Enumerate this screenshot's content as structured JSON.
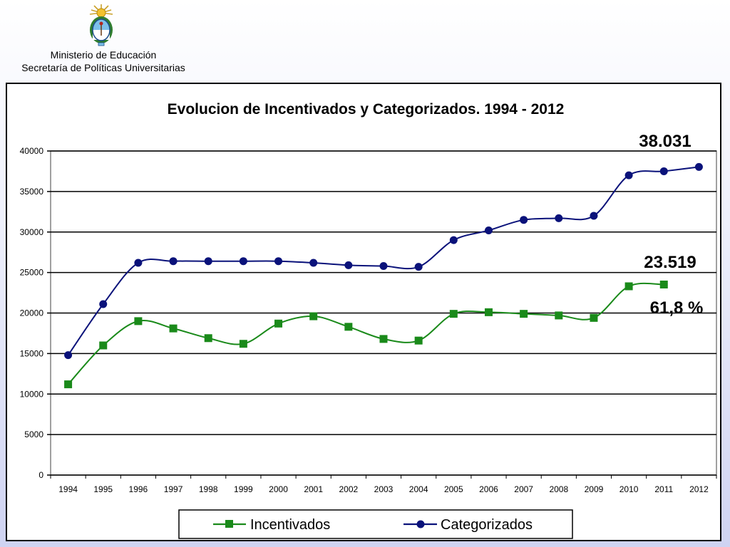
{
  "header": {
    "org_line1": "Ministerio de Educación",
    "org_line2": "Secretaría de Políticas Universitarias"
  },
  "colors": {
    "incentivados": "#1a8a1a",
    "categorizados": "#0a127a",
    "plot_bg": "#ffffff",
    "grid": "#000000"
  },
  "chart_data": {
    "type": "line",
    "title": "Evolucion de Incentivados y Categorizados. 1994 - 2012",
    "categories": [
      "1994",
      "1995",
      "1996",
      "1997",
      "1998",
      "1999",
      "2000",
      "2001",
      "2002",
      "2003",
      "2004",
      "2005",
      "2006",
      "2007",
      "2008",
      "2009",
      "2010",
      "2011",
      "2012"
    ],
    "ylim": [
      0,
      40000
    ],
    "yticks": [
      "0",
      "5000",
      "10000",
      "15000",
      "20000",
      "25000",
      "30000",
      "35000",
      "40000"
    ],
    "grid": true,
    "legend_position": "bottom",
    "series": [
      {
        "name": "Incentivados",
        "marker": "square",
        "values": [
          11200,
          16000,
          19000,
          18100,
          16900,
          16200,
          18700,
          19600,
          18300,
          16800,
          16600,
          19900,
          20100,
          19900,
          19700,
          19400,
          23300,
          23519,
          null
        ]
      },
      {
        "name": "Categorizados",
        "marker": "circle",
        "values": [
          14800,
          21100,
          26200,
          26400,
          26400,
          26400,
          26400,
          26200,
          25900,
          25800,
          25700,
          29000,
          30200,
          31500,
          31700,
          32000,
          37000,
          37500,
          38031
        ]
      }
    ],
    "annotations": [
      "38.031",
      "23.519",
      "61,8 %"
    ]
  }
}
